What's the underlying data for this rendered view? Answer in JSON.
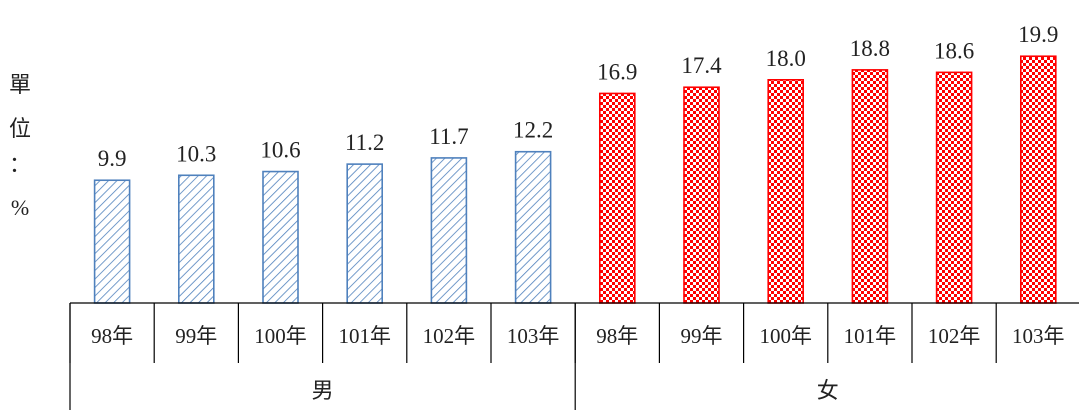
{
  "chart_data": {
    "type": "bar",
    "unit_label": [
      "單",
      "位",
      "：",
      "%"
    ],
    "groups": [
      {
        "label": "男",
        "color": "#4f81bd",
        "pattern": "diagonal-hatch",
        "categories": [
          "98年",
          "99年",
          "100年",
          "101年",
          "102年",
          "103年"
        ],
        "values": [
          9.9,
          10.3,
          10.6,
          11.2,
          11.7,
          12.2
        ],
        "value_labels": [
          "9.9",
          "10.3",
          "10.6",
          "11.2",
          "11.7",
          "12.2"
        ]
      },
      {
        "label": "女",
        "color": "#ff0000",
        "pattern": "checkerboard",
        "categories": [
          "98年",
          "99年",
          "100年",
          "101年",
          "102年",
          "103年"
        ],
        "values": [
          16.9,
          17.4,
          18.0,
          18.8,
          18.6,
          19.9
        ],
        "value_labels": [
          "16.9",
          "17.4",
          "18.0",
          "18.8",
          "18.6",
          "19.9"
        ]
      }
    ],
    "ylim": [
      0,
      20
    ],
    "grid": false,
    "legend": "none"
  }
}
